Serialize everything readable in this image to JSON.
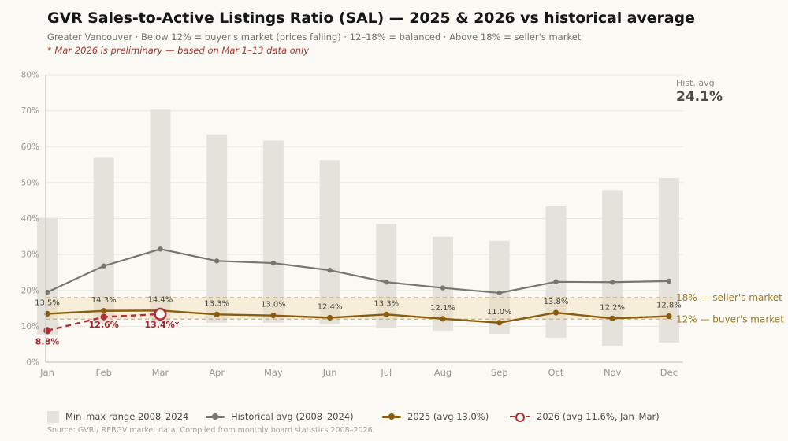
{
  "header": {
    "title": "GVR Sales-to-Active Listings Ratio (SAL) — 2025 & 2026 vs historical average",
    "subtitle": "Greater Vancouver · Below 12% = buyer's market (prices falling) · 12–18% = balanced · Above 18% = seller's market",
    "note": "* Mar 2026 is preliminary — based on Mar 1–13 data only"
  },
  "annotations": {
    "hist_avg_label": "Hist. avg",
    "hist_avg_value": "24.1%"
  },
  "legend": [
    {
      "label": "Min–max range 2008–2024",
      "marker": "bar-swatch",
      "color": "#e4e2db"
    },
    {
      "label": "Historical avg (2008–2024)",
      "marker": "line-dot",
      "color": "#78776f"
    },
    {
      "label": "2025 (avg 13.0%)",
      "marker": "line-dot",
      "color": "#8a5c0e"
    },
    {
      "label": "2026 (avg 11.6%, Jan–Mar)",
      "marker": "dashed-open-dot",
      "color": "#ae3136"
    }
  ],
  "source": "Source: GVR / REBGV market data. Compiled from monthly board statistics 2008–2026.",
  "chart_data": {
    "type": "combo (range bars + lines)",
    "title": "GVR Sales-to-Active Listings Ratio (SAL) — 2025 & 2026 vs historical average",
    "categories": [
      "Jan",
      "Feb",
      "Mar",
      "Apr",
      "May",
      "Jun",
      "Jul",
      "Aug",
      "Sep",
      "Oct",
      "Nov",
      "Dec"
    ],
    "y_axis": {
      "min": 0,
      "max": 80,
      "tick_step": 10,
      "tick_suffix": "%"
    },
    "grid": true,
    "legend_position": "bottom",
    "hist_avg_overall": 24.1,
    "band": {
      "from": 12,
      "to": 18,
      "meaning": "balanced market"
    },
    "thresholds": [
      {
        "value": 18,
        "label": "18% — seller's market"
      },
      {
        "value": 12,
        "label": "12% — buyer's market"
      }
    ],
    "series": [
      {
        "name": "Min–max range 2008–2024",
        "type": "range_bar",
        "min": [
          7.7,
          10.5,
          11,
          11,
          11,
          10.5,
          9.5,
          8.8,
          7.9,
          6.8,
          4.6,
          5.5
        ],
        "max": [
          40.2,
          57.1,
          70.3,
          63.4,
          61.7,
          56.3,
          38.5,
          34.9,
          33.8,
          43.4,
          47.9,
          51.3
        ]
      },
      {
        "name": "Historical avg (2008–2024)",
        "type": "line",
        "values": [
          19.5,
          26.8,
          31.5,
          28.2,
          27.6,
          25.6,
          22.3,
          20.7,
          19.3,
          22.4,
          22.3,
          22.6
        ]
      },
      {
        "name": "2025",
        "type": "line",
        "avg": 13.0,
        "values": [
          13.5,
          14.3,
          14.4,
          13.3,
          13.0,
          12.4,
          13.3,
          12.1,
          11.0,
          13.8,
          12.2,
          12.8
        ],
        "point_labels": [
          "13.5%",
          "14.3%",
          "14.4%",
          "13.3%",
          "13.0%",
          "12.4%",
          "13.3%",
          "12.1%",
          "11.0%",
          "13.8%",
          "12.2%",
          "12.8%"
        ]
      },
      {
        "name": "2026",
        "type": "dashed_line",
        "avg": 11.6,
        "values": [
          8.8,
          12.6,
          13.4
        ],
        "point_labels": [
          "8.8%",
          "12.6%",
          "13.4%*"
        ],
        "last_point_open": true
      }
    ],
    "colors": {
      "background": "#faf9f3",
      "bar": "#e4e2db",
      "band_fill": "#f2ddb0",
      "grid": "#eae8e1",
      "axis": "#d2d0c7",
      "tick_label": "#9a978e",
      "threshold_line": "#d0aa7b",
      "threshold_label": "#a07a1d",
      "hist_line": "#78776f",
      "line_2025": "#8a5c0e",
      "value_label_2025": "#47463f",
      "line_2026": "#ae3136",
      "value_label_2026": "#a22430"
    }
  }
}
